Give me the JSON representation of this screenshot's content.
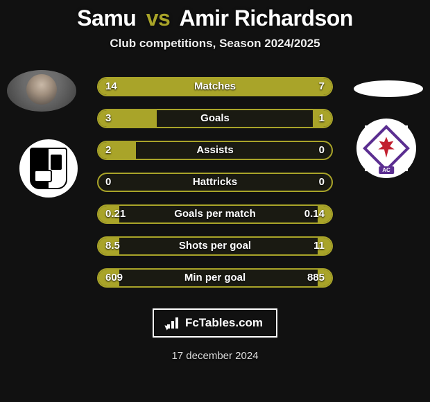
{
  "title": {
    "p1": "Samu",
    "vs": "vs",
    "p2": "Amir Richardson"
  },
  "subtitle": "Club competitions, Season 2024/2025",
  "colors": {
    "accent": "#a9a429",
    "bg": "#111111",
    "p2_crest_purple": "#5b2e91",
    "p2_crest_red": "#c21f2f"
  },
  "stats": [
    {
      "label": "Matches",
      "l": "14",
      "r": "7",
      "fill_l_pct": 67,
      "fill_r_pct": 33
    },
    {
      "label": "Goals",
      "l": "3",
      "r": "1",
      "fill_l_pct": 25,
      "fill_r_pct": 8
    },
    {
      "label": "Assists",
      "l": "2",
      "r": "0",
      "fill_l_pct": 16,
      "fill_r_pct": 0
    },
    {
      "label": "Hattricks",
      "l": "0",
      "r": "0",
      "fill_l_pct": 0,
      "fill_r_pct": 0
    },
    {
      "label": "Goals per match",
      "l": "0.21",
      "r": "0.14",
      "fill_l_pct": 9,
      "fill_r_pct": 6
    },
    {
      "label": "Shots per goal",
      "l": "8.5",
      "r": "11",
      "fill_l_pct": 9,
      "fill_r_pct": 6
    },
    {
      "label": "Min per goal",
      "l": "609",
      "r": "885",
      "fill_l_pct": 9,
      "fill_r_pct": 6
    }
  ],
  "logo_text": "FcTables.com",
  "date": "17 december 2024",
  "p2_crest_tag": "AC"
}
